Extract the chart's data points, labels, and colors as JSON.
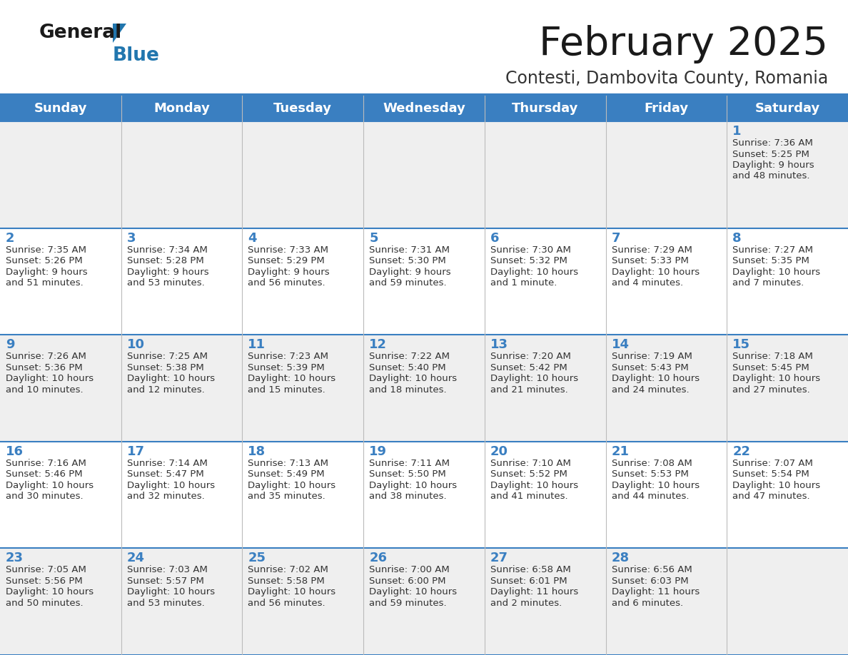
{
  "title": "February 2025",
  "subtitle": "Contesti, Dambovita County, Romania",
  "header_bg": "#3a7fc1",
  "header_text": "#ffffff",
  "cell_bg_even": "#efefef",
  "cell_bg_odd": "#ffffff",
  "day_headers": [
    "Sunday",
    "Monday",
    "Tuesday",
    "Wednesday",
    "Thursday",
    "Friday",
    "Saturday"
  ],
  "title_color": "#1a1a1a",
  "subtitle_color": "#333333",
  "day_num_color": "#3a7fc1",
  "info_color": "#333333",
  "line_color": "#3a7fc1",
  "logo_color_general": "#1a1a1a",
  "logo_color_blue": "#2176ae",
  "weeks": [
    [
      {
        "day": "",
        "info": ""
      },
      {
        "day": "",
        "info": ""
      },
      {
        "day": "",
        "info": ""
      },
      {
        "day": "",
        "info": ""
      },
      {
        "day": "",
        "info": ""
      },
      {
        "day": "",
        "info": ""
      },
      {
        "day": "1",
        "info": "Sunrise: 7:36 AM\nSunset: 5:25 PM\nDaylight: 9 hours\nand 48 minutes."
      }
    ],
    [
      {
        "day": "2",
        "info": "Sunrise: 7:35 AM\nSunset: 5:26 PM\nDaylight: 9 hours\nand 51 minutes."
      },
      {
        "day": "3",
        "info": "Sunrise: 7:34 AM\nSunset: 5:28 PM\nDaylight: 9 hours\nand 53 minutes."
      },
      {
        "day": "4",
        "info": "Sunrise: 7:33 AM\nSunset: 5:29 PM\nDaylight: 9 hours\nand 56 minutes."
      },
      {
        "day": "5",
        "info": "Sunrise: 7:31 AM\nSunset: 5:30 PM\nDaylight: 9 hours\nand 59 minutes."
      },
      {
        "day": "6",
        "info": "Sunrise: 7:30 AM\nSunset: 5:32 PM\nDaylight: 10 hours\nand 1 minute."
      },
      {
        "day": "7",
        "info": "Sunrise: 7:29 AM\nSunset: 5:33 PM\nDaylight: 10 hours\nand 4 minutes."
      },
      {
        "day": "8",
        "info": "Sunrise: 7:27 AM\nSunset: 5:35 PM\nDaylight: 10 hours\nand 7 minutes."
      }
    ],
    [
      {
        "day": "9",
        "info": "Sunrise: 7:26 AM\nSunset: 5:36 PM\nDaylight: 10 hours\nand 10 minutes."
      },
      {
        "day": "10",
        "info": "Sunrise: 7:25 AM\nSunset: 5:38 PM\nDaylight: 10 hours\nand 12 minutes."
      },
      {
        "day": "11",
        "info": "Sunrise: 7:23 AM\nSunset: 5:39 PM\nDaylight: 10 hours\nand 15 minutes."
      },
      {
        "day": "12",
        "info": "Sunrise: 7:22 AM\nSunset: 5:40 PM\nDaylight: 10 hours\nand 18 minutes."
      },
      {
        "day": "13",
        "info": "Sunrise: 7:20 AM\nSunset: 5:42 PM\nDaylight: 10 hours\nand 21 minutes."
      },
      {
        "day": "14",
        "info": "Sunrise: 7:19 AM\nSunset: 5:43 PM\nDaylight: 10 hours\nand 24 minutes."
      },
      {
        "day": "15",
        "info": "Sunrise: 7:18 AM\nSunset: 5:45 PM\nDaylight: 10 hours\nand 27 minutes."
      }
    ],
    [
      {
        "day": "16",
        "info": "Sunrise: 7:16 AM\nSunset: 5:46 PM\nDaylight: 10 hours\nand 30 minutes."
      },
      {
        "day": "17",
        "info": "Sunrise: 7:14 AM\nSunset: 5:47 PM\nDaylight: 10 hours\nand 32 minutes."
      },
      {
        "day": "18",
        "info": "Sunrise: 7:13 AM\nSunset: 5:49 PM\nDaylight: 10 hours\nand 35 minutes."
      },
      {
        "day": "19",
        "info": "Sunrise: 7:11 AM\nSunset: 5:50 PM\nDaylight: 10 hours\nand 38 minutes."
      },
      {
        "day": "20",
        "info": "Sunrise: 7:10 AM\nSunset: 5:52 PM\nDaylight: 10 hours\nand 41 minutes."
      },
      {
        "day": "21",
        "info": "Sunrise: 7:08 AM\nSunset: 5:53 PM\nDaylight: 10 hours\nand 44 minutes."
      },
      {
        "day": "22",
        "info": "Sunrise: 7:07 AM\nSunset: 5:54 PM\nDaylight: 10 hours\nand 47 minutes."
      }
    ],
    [
      {
        "day": "23",
        "info": "Sunrise: 7:05 AM\nSunset: 5:56 PM\nDaylight: 10 hours\nand 50 minutes."
      },
      {
        "day": "24",
        "info": "Sunrise: 7:03 AM\nSunset: 5:57 PM\nDaylight: 10 hours\nand 53 minutes."
      },
      {
        "day": "25",
        "info": "Sunrise: 7:02 AM\nSunset: 5:58 PM\nDaylight: 10 hours\nand 56 minutes."
      },
      {
        "day": "26",
        "info": "Sunrise: 7:00 AM\nSunset: 6:00 PM\nDaylight: 10 hours\nand 59 minutes."
      },
      {
        "day": "27",
        "info": "Sunrise: 6:58 AM\nSunset: 6:01 PM\nDaylight: 11 hours\nand 2 minutes."
      },
      {
        "day": "28",
        "info": "Sunrise: 6:56 AM\nSunset: 6:03 PM\nDaylight: 11 hours\nand 6 minutes."
      },
      {
        "day": "",
        "info": ""
      }
    ]
  ]
}
